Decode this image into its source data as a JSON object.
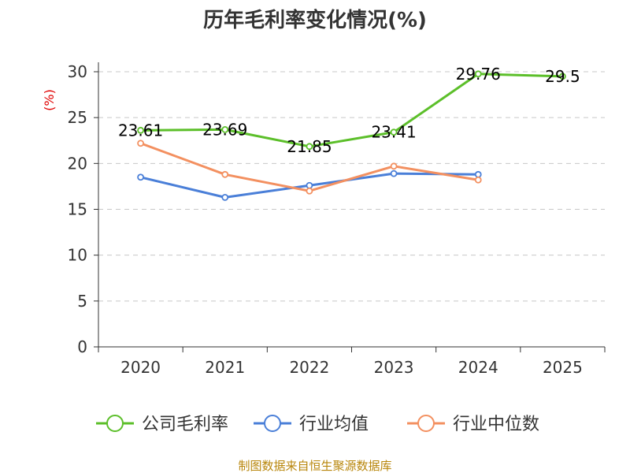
{
  "chart_data": {
    "type": "line",
    "title": "历年毛利率变化情况(%)",
    "ylabel": "(%)",
    "xlabel": "",
    "categories": [
      "2020",
      "2021",
      "2022",
      "2023",
      "2024",
      "2025"
    ],
    "ylim": [
      0,
      30
    ],
    "yticks": [
      0,
      5,
      10,
      15,
      20,
      25,
      30
    ],
    "grid": true,
    "legend_position": "bottom",
    "series": [
      {
        "name": "公司毛利率",
        "color": "#5cbf2a",
        "values": [
          23.61,
          23.69,
          21.85,
          23.41,
          29.76,
          29.5
        ],
        "labels": [
          "23.61",
          "23.69",
          "21.85",
          "23.41",
          "29.76",
          "29.5"
        ]
      },
      {
        "name": "行业均值",
        "color": "#4a7fd8",
        "values": [
          18.5,
          16.3,
          17.6,
          18.9,
          18.8,
          null
        ]
      },
      {
        "name": "行业中位数",
        "color": "#f39060",
        "values": [
          22.2,
          18.8,
          17.0,
          19.7,
          18.2,
          null
        ]
      }
    ]
  },
  "footer": {
    "source": "制图数据来自恒生聚源数据库"
  }
}
